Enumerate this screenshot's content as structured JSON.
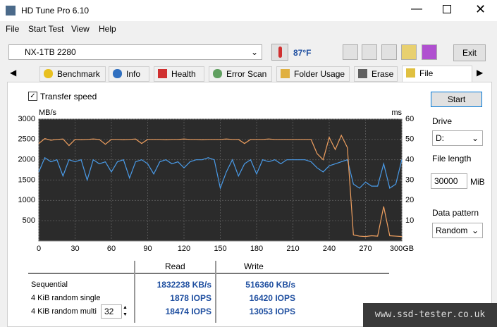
{
  "window": {
    "title": "HD Tune Pro 6.10"
  },
  "menu": [
    "File",
    "Start Test",
    "View",
    "Help"
  ],
  "toolbar": {
    "drive": "NX-1TB 2280",
    "temperature": "87°F",
    "exit": "Exit"
  },
  "tabs": [
    "Benchmark",
    "Info",
    "Health",
    "Error Scan",
    "Folder Usage",
    "Erase",
    "File Benchm..."
  ],
  "panel": {
    "checkbox": "Transfer speed",
    "start": "Start",
    "drive_label": "Drive",
    "drive_value": "D:",
    "file_length_label": "File length",
    "file_length_value": "30000",
    "file_length_unit": "MiB",
    "pattern_label": "Data pattern",
    "pattern_value": "Random"
  },
  "chart_data": {
    "type": "line",
    "y_label": "MB/s",
    "y2_label": "ms",
    "x": [
      0,
      5,
      10,
      15,
      20,
      25,
      30,
      35,
      40,
      45,
      50,
      55,
      60,
      65,
      70,
      75,
      80,
      85,
      90,
      95,
      100,
      105,
      110,
      115,
      120,
      125,
      130,
      135,
      140,
      145,
      150,
      155,
      160,
      165,
      170,
      175,
      180,
      185,
      190,
      195,
      200,
      205,
      210,
      215,
      220,
      225,
      230,
      235,
      240,
      245,
      250,
      255,
      260,
      265,
      270,
      275,
      280,
      285,
      290,
      295,
      300
    ],
    "series": [
      {
        "color": "#4a9be8",
        "values": [
          1700,
          2050,
          1950,
          2000,
          1600,
          2000,
          1950,
          2000,
          1500,
          2000,
          1900,
          1950,
          1700,
          1950,
          2000,
          1550,
          1950,
          2000,
          1900,
          1650,
          1950,
          2000,
          1900,
          1950,
          1800,
          1950,
          2000,
          2000,
          2050,
          2000,
          1300,
          1700,
          2000,
          1600,
          1900,
          2000,
          1650,
          2000,
          1950,
          2000,
          1900,
          2000,
          2000,
          2000,
          2000,
          1950,
          1800,
          1700,
          1850,
          1900,
          1950,
          2000,
          1400,
          1300,
          1450,
          1350,
          1350,
          1900,
          1300,
          1400,
          2000
        ]
      },
      {
        "color": "#f0a060",
        "values": [
          2400,
          2520,
          2480,
          2500,
          2510,
          2350,
          2500,
          2490,
          2500,
          2510,
          2500,
          2380,
          2500,
          2500,
          2490,
          2500,
          2510,
          2400,
          2500,
          2500,
          2500,
          2490,
          2500,
          2500,
          2510,
          2500,
          2500,
          2490,
          2500,
          2500,
          2500,
          2510,
          2500,
          2500,
          2400,
          2500,
          2500,
          2500,
          2510,
          2500,
          2500,
          2500,
          2500,
          2500,
          2500,
          2500,
          2150,
          2000,
          2550,
          2250,
          2600,
          2300,
          150,
          120,
          110,
          130,
          120,
          850,
          130,
          120,
          110
        ]
      }
    ],
    "xlim": [
      0,
      300
    ],
    "xticks": [
      0,
      30,
      60,
      90,
      120,
      150,
      180,
      210,
      240,
      270,
      {
        "value": 300,
        "label": "300GB"
      }
    ],
    "ylim": [
      0,
      3000
    ],
    "yticks": [
      500,
      1000,
      1500,
      2000,
      2500,
      3000
    ],
    "y2lim": [
      0,
      60
    ],
    "y2ticks": [
      10,
      20,
      30,
      40,
      50,
      60
    ],
    "grid": true
  },
  "results": {
    "columns": [
      "Read",
      "Write"
    ],
    "rows": [
      {
        "label": "Sequential",
        "read": "1832238 KB/s",
        "write": "516360 KB/s"
      },
      {
        "label": "4 KiB random single",
        "read": "1878 IOPS",
        "write": "16420 IOPS"
      },
      {
        "label": "4 KiB random multi",
        "read": "18474 IOPS",
        "write": "13053 IOPS"
      }
    ],
    "queue_depth": "32"
  },
  "watermark": "www.ssd-tester.co.uk"
}
